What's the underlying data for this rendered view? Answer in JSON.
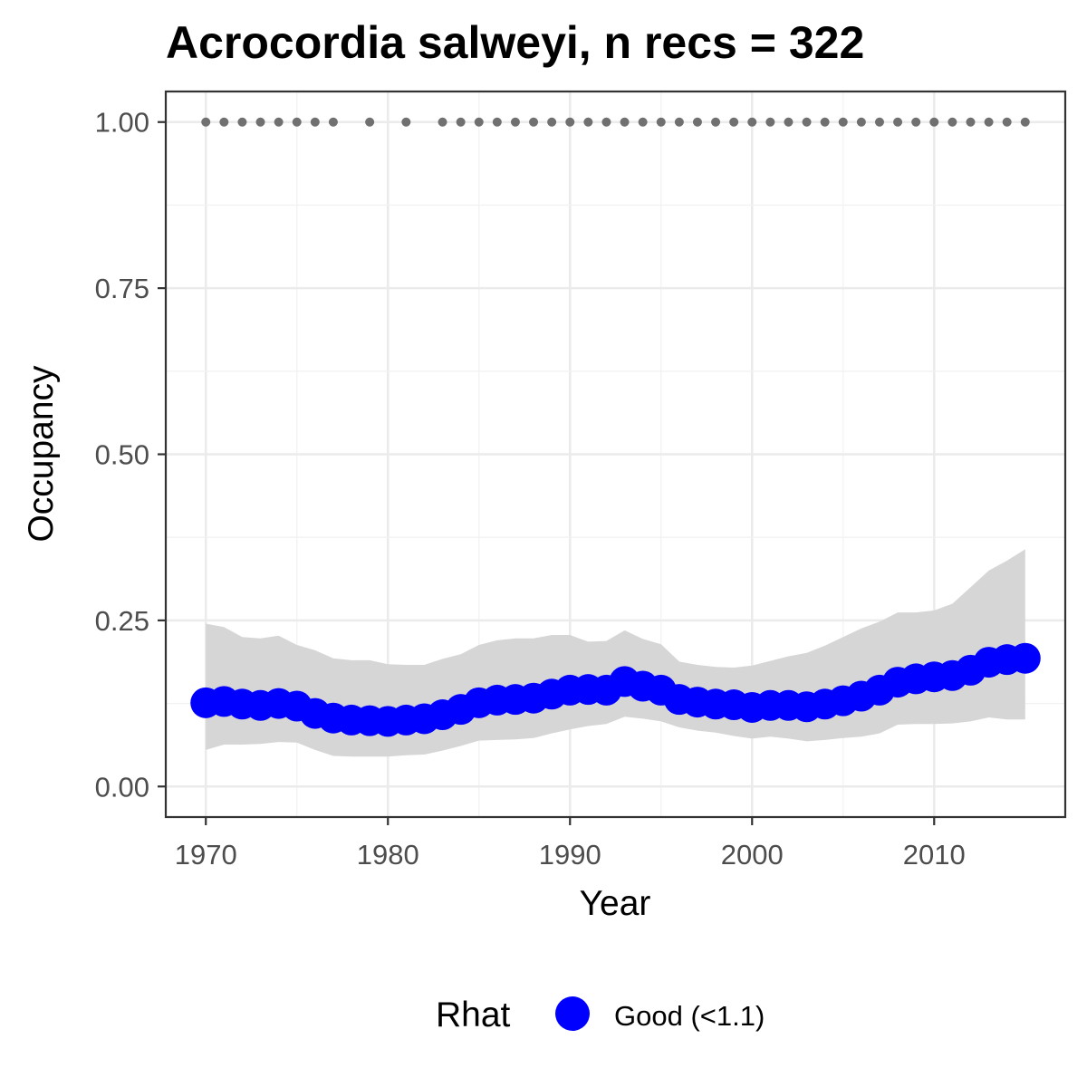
{
  "chart_data": {
    "type": "line",
    "title": "Acrocordia salweyi, n recs = 322",
    "xlabel": "Year",
    "ylabel": "Occupancy",
    "xlim": [
      1967.8,
      2017.2
    ],
    "ylim": [
      -0.046,
      1.046
    ],
    "x_ticks": [
      1970,
      1980,
      1990,
      2000,
      2010
    ],
    "x_tick_labels": [
      "1970",
      "1980",
      "1990",
      "2000",
      "2010"
    ],
    "y_ticks": [
      0,
      0.25,
      0.5,
      0.75,
      1
    ],
    "y_tick_labels": [
      "0.00",
      "0.25",
      "0.50",
      "0.75",
      "1.00"
    ],
    "grid": true,
    "legend_position": "bottom",
    "legend": {
      "title": "Rhat",
      "entries": [
        {
          "label": "Good (<1.1)",
          "color": "#0000ff"
        }
      ]
    },
    "colors": {
      "points": "#0000ff",
      "ribbon": "#d6d6d6",
      "records": "#707070"
    },
    "series": [
      {
        "name": "Good (<1.1)",
        "x": [
          1970,
          1971,
          1972,
          1973,
          1974,
          1975,
          1976,
          1977,
          1978,
          1979,
          1980,
          1981,
          1982,
          1983,
          1984,
          1985,
          1986,
          1987,
          1988,
          1989,
          1990,
          1991,
          1992,
          1993,
          1994,
          1995,
          1996,
          1997,
          1998,
          1999,
          2000,
          2001,
          2002,
          2003,
          2004,
          2005,
          2006,
          2007,
          2008,
          2009,
          2010,
          2011,
          2012,
          2013,
          2014,
          2015
        ],
        "y": [
          0.126,
          0.128,
          0.124,
          0.122,
          0.125,
          0.121,
          0.11,
          0.103,
          0.1,
          0.099,
          0.098,
          0.1,
          0.102,
          0.108,
          0.116,
          0.126,
          0.13,
          0.131,
          0.133,
          0.139,
          0.145,
          0.146,
          0.145,
          0.158,
          0.151,
          0.145,
          0.131,
          0.127,
          0.124,
          0.123,
          0.119,
          0.122,
          0.122,
          0.12,
          0.124,
          0.129,
          0.136,
          0.145,
          0.157,
          0.162,
          0.165,
          0.167,
          0.175,
          0.187,
          0.191,
          0.193
        ],
        "lower": [
          0.055,
          0.063,
          0.063,
          0.064,
          0.067,
          0.066,
          0.055,
          0.046,
          0.045,
          0.045,
          0.045,
          0.047,
          0.048,
          0.054,
          0.061,
          0.069,
          0.07,
          0.071,
          0.073,
          0.08,
          0.086,
          0.091,
          0.094,
          0.105,
          0.102,
          0.098,
          0.089,
          0.084,
          0.081,
          0.076,
          0.072,
          0.075,
          0.072,
          0.068,
          0.07,
          0.073,
          0.075,
          0.08,
          0.093,
          0.094,
          0.094,
          0.095,
          0.098,
          0.104,
          0.101,
          0.101
        ],
        "upper": [
          0.245,
          0.24,
          0.225,
          0.223,
          0.227,
          0.213,
          0.205,
          0.193,
          0.19,
          0.19,
          0.184,
          0.183,
          0.183,
          0.192,
          0.199,
          0.213,
          0.22,
          0.223,
          0.223,
          0.228,
          0.228,
          0.218,
          0.219,
          0.235,
          0.222,
          0.214,
          0.188,
          0.183,
          0.18,
          0.179,
          0.182,
          0.189,
          0.196,
          0.201,
          0.212,
          0.225,
          0.238,
          0.248,
          0.262,
          0.262,
          0.265,
          0.275,
          0.3,
          0.325,
          0.34,
          0.357
        ]
      }
    ],
    "records": {
      "y": 1,
      "x": [
        1970,
        1971,
        1972,
        1973,
        1974,
        1975,
        1976,
        1977,
        1979,
        1981,
        1983,
        1984,
        1985,
        1986,
        1987,
        1988,
        1989,
        1990,
        1991,
        1992,
        1993,
        1994,
        1995,
        1996,
        1997,
        1998,
        1999,
        2000,
        2001,
        2002,
        2003,
        2004,
        2005,
        2006,
        2007,
        2008,
        2009,
        2010,
        2011,
        2012,
        2013,
        2014,
        2015
      ]
    }
  }
}
